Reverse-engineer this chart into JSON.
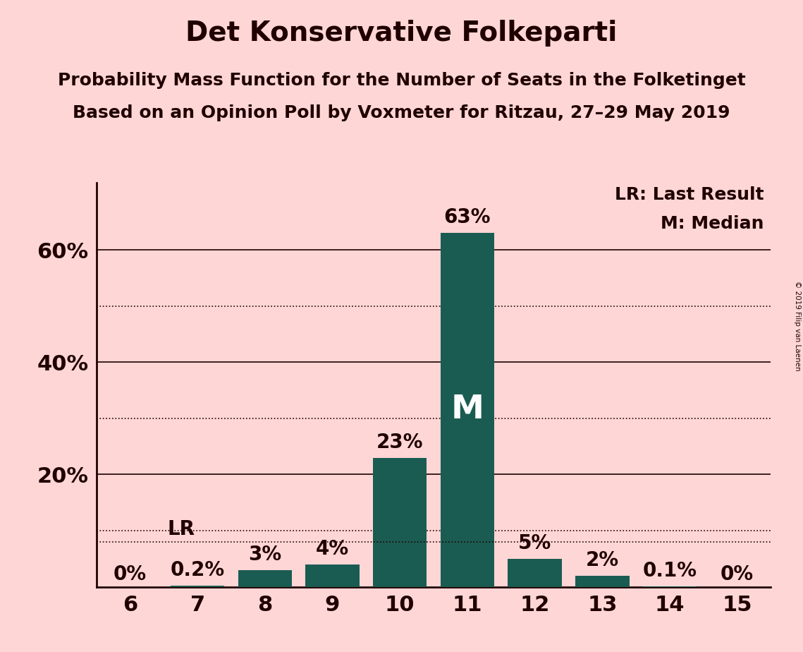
{
  "title": "Det Konservative Folkeparti",
  "subtitle1": "Probability Mass Function for the Number of Seats in the Folketinget",
  "subtitle2": "Based on an Opinion Poll by Voxmeter for Ritzau, 27–29 May 2019",
  "copyright": "© 2019 Filip van Laenen",
  "seats": [
    6,
    7,
    8,
    9,
    10,
    11,
    12,
    13,
    14,
    15
  ],
  "probabilities": [
    0.0,
    0.2,
    3.0,
    4.0,
    23.0,
    63.0,
    5.0,
    2.0,
    0.1,
    0.0
  ],
  "bar_color": "#1a5c52",
  "background_color": "#ffd6d6",
  "last_result_value": 8.0,
  "median_seat": 11,
  "legend_lr": "LR: Last Result",
  "legend_m": "M: Median",
  "dotted_gridlines": [
    10,
    30,
    50
  ],
  "solid_gridlines": [
    20,
    40,
    60
  ],
  "lr_dotted_line": 8.0,
  "ylim": [
    0,
    72
  ],
  "bar_labels": [
    "0%",
    "0.2%",
    "3%",
    "4%",
    "23%",
    "63%",
    "5%",
    "2%",
    "0.1%",
    "0%"
  ],
  "title_fontsize": 28,
  "subtitle_fontsize": 18,
  "tick_fontsize": 22,
  "bar_label_fontsize": 20,
  "legend_fontsize": 18,
  "spine_color": "#200000",
  "text_color": "#200000"
}
